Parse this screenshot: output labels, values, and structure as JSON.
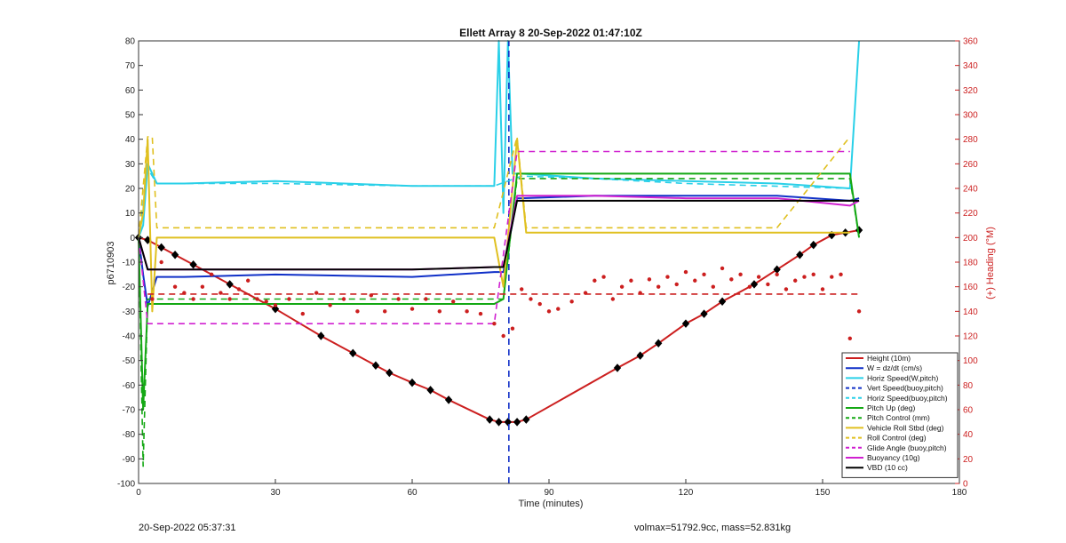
{
  "footer": {
    "left": "20-Sep-2022 05:37:31",
    "right": "volmax=51792.9cc, mass=52.831kg"
  },
  "chart_data": {
    "type": "line",
    "title": "Ellett Array 8 20-Sep-2022 01:47:10Z",
    "xlabel": "Time (minutes)",
    "ylabel": "p6710903",
    "y2label": "(+) Heading (°M)",
    "xlim": [
      0,
      180
    ],
    "ylim": [
      -100,
      80
    ],
    "y2lim": [
      0,
      360
    ],
    "xticks": [
      0,
      30,
      60,
      90,
      120,
      150,
      180
    ],
    "yticks": [
      -100,
      -90,
      -80,
      -70,
      -60,
      -50,
      -40,
      -30,
      -20,
      -10,
      0,
      10,
      20,
      30,
      40,
      50,
      60,
      70,
      80
    ],
    "y2ticks": [
      0,
      20,
      40,
      60,
      80,
      100,
      120,
      140,
      160,
      180,
      200,
      220,
      240,
      260,
      280,
      300,
      320,
      340,
      360
    ],
    "grid": false,
    "legend_position": "bottom-right",
    "series": [
      {
        "name": "Height (10m)",
        "color": "#cc1f1f",
        "style": "solid",
        "marker": "diamond",
        "x": [
          0,
          2,
          5,
          8,
          12,
          20,
          30,
          40,
          47,
          52,
          55,
          60,
          64,
          68,
          77,
          79,
          81,
          83,
          85,
          105,
          110,
          114,
          120,
          124,
          128,
          135,
          140,
          145,
          148,
          152,
          155,
          158
        ],
        "y": [
          0,
          -1,
          -4,
          -7,
          -11,
          -19,
          -29,
          -40,
          -47,
          -52,
          -55,
          -59,
          -62,
          -66,
          -74,
          -75,
          -75,
          -75,
          -74,
          -53,
          -48,
          -43,
          -35,
          -31,
          -26,
          -19,
          -13,
          -7,
          -3,
          1,
          2,
          3
        ]
      },
      {
        "name": "W = dz/dt (cm/s)",
        "color": "#1030c8",
        "style": "solid",
        "x": [
          0,
          1,
          2,
          4,
          10,
          30,
          60,
          78,
          80,
          83,
          84,
          100,
          120,
          140,
          156,
          158
        ],
        "y": [
          0,
          -15,
          -28,
          -16,
          -16,
          -15,
          -16,
          -14,
          -14,
          16,
          16,
          17,
          17,
          17,
          15,
          16
        ]
      },
      {
        "name": "Horiz Speed(W,pitch)",
        "color": "#2ad0e8",
        "style": "solid",
        "x": [
          0,
          1,
          2,
          4,
          10,
          30,
          60,
          78,
          79,
          80,
          81,
          82,
          84,
          100,
          120,
          140,
          156,
          158
        ],
        "y": [
          0,
          5,
          30,
          22,
          22,
          23,
          21,
          21,
          80,
          10,
          80,
          26,
          26,
          24,
          23,
          22,
          20,
          80
        ]
      },
      {
        "name": "Vert Speed(buoy,pitch)",
        "color": "#1030c8",
        "style": "dashed",
        "x": [
          81.2,
          81.2
        ],
        "y": [
          -100,
          80
        ]
      },
      {
        "name": "Horiz Speed(buoy,pitch)",
        "color": "#2ad0e8",
        "style": "dashed",
        "x": [
          0,
          2,
          4,
          30,
          60,
          78,
          84,
          100,
          120,
          156
        ],
        "y": [
          0,
          28,
          22,
          22,
          21,
          21,
          25,
          24,
          22,
          20
        ]
      },
      {
        "name": "Pitch Up (deg)",
        "color": "#14a814",
        "style": "solid",
        "x": [
          0,
          1,
          2,
          4,
          30,
          60,
          78,
          80,
          83,
          84,
          100,
          120,
          140,
          156,
          158
        ],
        "y": [
          0,
          -70,
          -27,
          -27,
          -27,
          -27,
          -27,
          -25,
          26,
          26,
          26,
          26,
          26,
          26,
          0
        ]
      },
      {
        "name": "Pitch Control (mm)",
        "color": "#14a814",
        "style": "dashed",
        "x": [
          0,
          1,
          2,
          4,
          30,
          60,
          78,
          80,
          83,
          84,
          100,
          120,
          140,
          156,
          158
        ],
        "y": [
          0,
          -93,
          -25,
          -25,
          -25,
          -25,
          -25,
          -25,
          24,
          24,
          24,
          24,
          24,
          24,
          0
        ]
      },
      {
        "name": "Vehicle Roll Stbd (deg)",
        "color": "#e0c020",
        "style": "solid",
        "x": [
          0,
          1,
          2,
          3,
          4,
          30,
          60,
          78,
          80,
          83,
          85,
          100,
          105,
          120,
          140,
          156
        ],
        "y": [
          0,
          10,
          40,
          -30,
          0,
          0,
          0,
          0,
          -20,
          40,
          2,
          2,
          2,
          2,
          2,
          2
        ]
      },
      {
        "name": "Roll Control (deg)",
        "color": "#e0c020",
        "style": "dashed",
        "x": [
          0,
          2,
          3,
          4,
          30,
          60,
          78,
          83,
          85,
          100,
          105,
          120,
          140,
          156
        ],
        "y": [
          0,
          41,
          41,
          4,
          4,
          4,
          4,
          41,
          4,
          4,
          4,
          4,
          4,
          41
        ]
      },
      {
        "name": "Glide Angle (buoy,pitch)",
        "color": "#d020d0",
        "style": "dashed",
        "x": [
          0,
          2,
          4,
          30,
          60,
          78,
          83,
          85,
          100,
          120,
          140,
          156
        ],
        "y": [
          0,
          -35,
          -35,
          -35,
          -35,
          -35,
          35,
          35,
          35,
          35,
          35,
          35
        ]
      },
      {
        "name": "Buoyancy (10g)",
        "color": "#d020d0",
        "style": "solid",
        "x": [
          0,
          2,
          4,
          30,
          60,
          78,
          80,
          83,
          84,
          100,
          120,
          140,
          156,
          158
        ],
        "y": [
          0,
          -13,
          -13,
          -13,
          -13,
          -12,
          -12,
          17,
          17,
          17,
          16,
          16,
          13,
          15
        ]
      },
      {
        "name": "VBD (10 cc)",
        "color": "#000000",
        "style": "solid",
        "x": [
          0,
          2,
          4,
          30,
          60,
          78,
          80,
          83,
          84,
          100,
          120,
          140,
          156,
          158
        ],
        "y": [
          0,
          -13,
          -13,
          -13,
          -13,
          -12,
          -12,
          15,
          15,
          15,
          15,
          15,
          15,
          15
        ]
      },
      {
        "name": "Heading",
        "color": "#cc1f1f",
        "style": "markers",
        "axis": "right",
        "x": [
          3,
          5,
          8,
          10,
          12,
          14,
          16,
          18,
          20,
          22,
          24,
          26,
          28,
          30,
          33,
          36,
          39,
          42,
          45,
          48,
          51,
          54,
          57,
          60,
          63,
          66,
          69,
          72,
          75,
          78,
          80,
          82,
          84,
          86,
          88,
          90,
          92,
          95,
          98,
          100,
          102,
          104,
          106,
          108,
          110,
          112,
          114,
          116,
          118,
          120,
          122,
          124,
          126,
          128,
          130,
          132,
          134,
          136,
          138,
          140,
          142,
          144,
          146,
          148,
          150,
          152,
          154,
          156,
          158
        ],
        "y": [
          150,
          180,
          160,
          155,
          150,
          160,
          170,
          155,
          150,
          158,
          165,
          150,
          148,
          145,
          150,
          138,
          155,
          145,
          150,
          140,
          153,
          140,
          150,
          142,
          150,
          140,
          148,
          140,
          138,
          130,
          120,
          126,
          158,
          150,
          146,
          140,
          142,
          148,
          155,
          165,
          168,
          150,
          160,
          165,
          155,
          166,
          160,
          168,
          162,
          172,
          165,
          170,
          160,
          175,
          166,
          170,
          160,
          168,
          162,
          170,
          158,
          165,
          168,
          170,
          158,
          168,
          170,
          118,
          140
        ]
      },
      {
        "name": "Heading reference",
        "color": "#cc1f1f",
        "style": "dashed",
        "axis": "right",
        "x": [
          2,
          158
        ],
        "y": [
          154,
          154
        ]
      }
    ]
  }
}
